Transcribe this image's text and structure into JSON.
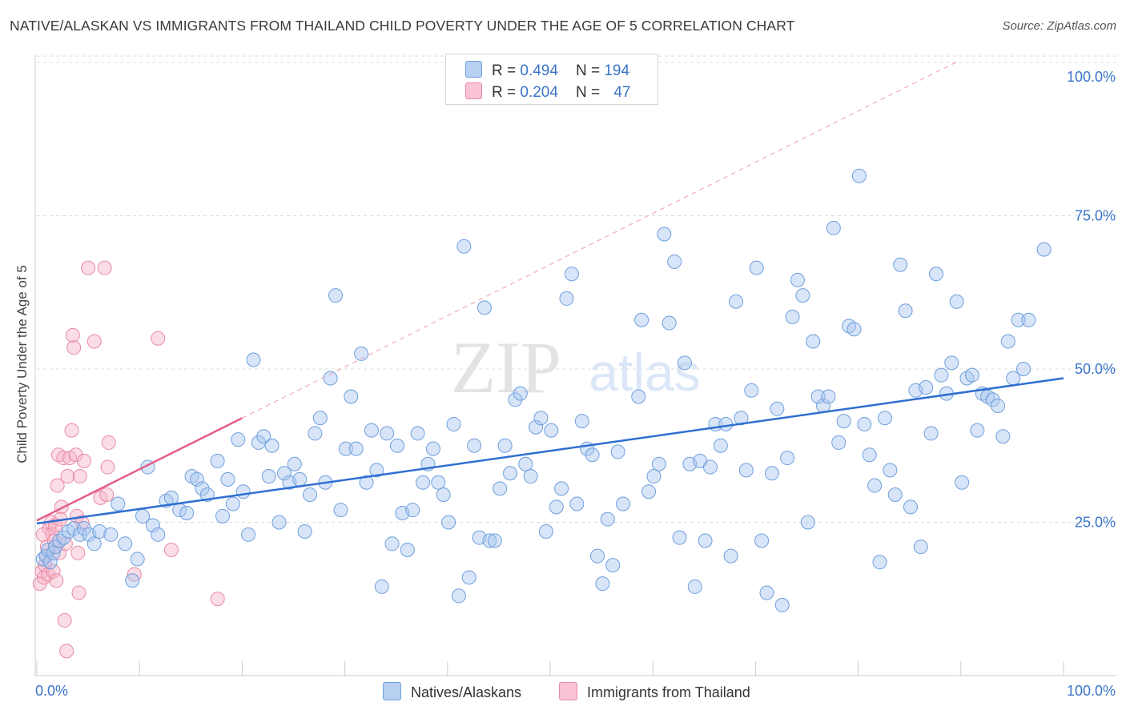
{
  "title": "NATIVE/ALASKAN VS IMMIGRANTS FROM THAILAND CHILD POVERTY UNDER THE AGE OF 5 CORRELATION CHART",
  "source": "Source: ZipAtlas.com",
  "watermark": {
    "zip": "ZIP",
    "atlas": "atlas"
  },
  "legend": {
    "r_label": "R =",
    "n_label": "N =",
    "series": [
      {
        "name": "Natives/Alaskans",
        "r": "0.494",
        "n": "194",
        "fill": "#b7d0f2",
        "stroke": "#6f9fdc"
      },
      {
        "name": "Immigrants from Thailand",
        "r": "0.204",
        "n": "47",
        "fill": "#f9c3d3",
        "stroke": "#e88aa6"
      }
    ]
  },
  "colors": {
    "blue_line": "#2f6fd0",
    "pink_line": "#e0608a",
    "blue_point": "#a9c6ef",
    "pink_point": "#f6b3c8",
    "tick_label": "#3a74c9",
    "grid": "#dcdcdc"
  },
  "chart_data": {
    "type": "scatter",
    "title": "NATIVE/ALASKAN VS IMMIGRANTS FROM THAILAND CHILD POVERTY UNDER THE AGE OF 5 CORRELATION CHART",
    "xlabel": "",
    "ylabel": "Child Poverty Under the Age of 5",
    "xlim": [
      0,
      100
    ],
    "ylim": [
      0,
      100
    ],
    "x_tick_labels": [
      "0.0%",
      "100.0%"
    ],
    "y_ticks": [
      25,
      50,
      75,
      100
    ],
    "y_tick_labels": [
      "25.0%",
      "50.0%",
      "75.0%",
      "100.0%"
    ],
    "grid": true,
    "series": [
      {
        "name": "Natives/Alaskans",
        "r": 0.494,
        "n": 194,
        "trend": {
          "x": [
            0,
            100
          ],
          "y": [
            24.8,
            48.5
          ]
        },
        "points": [
          [
            0.6,
            19
          ],
          [
            0.9,
            19.5
          ],
          [
            1.1,
            20.5
          ],
          [
            1.3,
            18.5
          ],
          [
            1.6,
            20
          ],
          [
            1.8,
            21
          ],
          [
            2.2,
            22
          ],
          [
            2.6,
            22.5
          ],
          [
            3.1,
            23.5
          ],
          [
            3.6,
            24
          ],
          [
            4.2,
            23
          ],
          [
            4.6,
            24
          ],
          [
            5.1,
            23
          ],
          [
            5.6,
            21.5
          ],
          [
            6.1,
            23.5
          ],
          [
            7.2,
            23
          ],
          [
            7.9,
            28
          ],
          [
            8.6,
            21.5
          ],
          [
            9.3,
            15.5
          ],
          [
            9.8,
            19
          ],
          [
            10.3,
            26
          ],
          [
            10.8,
            34
          ],
          [
            11.3,
            24.5
          ],
          [
            11.8,
            23
          ],
          [
            12.6,
            28.5
          ],
          [
            13.1,
            29
          ],
          [
            13.9,
            27
          ],
          [
            14.6,
            26.5
          ],
          [
            15.1,
            32.5
          ],
          [
            15.6,
            32
          ],
          [
            16.1,
            30.5
          ],
          [
            16.6,
            29.5
          ],
          [
            17.6,
            35
          ],
          [
            18.1,
            26
          ],
          [
            18.6,
            32
          ],
          [
            19.1,
            28
          ],
          [
            19.6,
            38.5
          ],
          [
            20.1,
            30
          ],
          [
            20.6,
            23
          ],
          [
            21.1,
            51.5
          ],
          [
            21.6,
            38
          ],
          [
            22.1,
            39
          ],
          [
            22.6,
            32.5
          ],
          [
            22.9,
            37.5
          ],
          [
            23.6,
            25
          ],
          [
            24.1,
            33
          ],
          [
            24.6,
            31.5
          ],
          [
            25.1,
            34.5
          ],
          [
            25.6,
            32
          ],
          [
            26.1,
            23.5
          ],
          [
            26.6,
            29.5
          ],
          [
            27.1,
            39.5
          ],
          [
            27.6,
            42
          ],
          [
            28.1,
            31.5
          ],
          [
            28.6,
            48.5
          ],
          [
            29.1,
            62
          ],
          [
            29.6,
            27
          ],
          [
            30.1,
            37
          ],
          [
            30.6,
            45.5
          ],
          [
            31.1,
            37
          ],
          [
            31.6,
            52.5
          ],
          [
            32.1,
            31.5
          ],
          [
            32.6,
            40
          ],
          [
            33.1,
            33.5
          ],
          [
            33.6,
            14.5
          ],
          [
            34.1,
            39.5
          ],
          [
            34.6,
            21.5
          ],
          [
            35.1,
            37.5
          ],
          [
            35.6,
            26.5
          ],
          [
            36.1,
            20.5
          ],
          [
            36.6,
            27
          ],
          [
            37.1,
            39.5
          ],
          [
            37.6,
            31.5
          ],
          [
            38.1,
            34.5
          ],
          [
            38.6,
            37
          ],
          [
            39.1,
            31.5
          ],
          [
            39.6,
            29.5
          ],
          [
            40.1,
            25
          ],
          [
            40.6,
            41
          ],
          [
            41.1,
            13
          ],
          [
            41.6,
            70
          ],
          [
            42.1,
            16
          ],
          [
            42.6,
            37.5
          ],
          [
            43.1,
            22.5
          ],
          [
            43.6,
            60
          ],
          [
            44.1,
            22
          ],
          [
            44.6,
            22
          ],
          [
            45.1,
            30.5
          ],
          [
            45.6,
            37.5
          ],
          [
            46.1,
            33
          ],
          [
            46.6,
            45
          ],
          [
            47.1,
            46
          ],
          [
            47.6,
            34.5
          ],
          [
            48.1,
            32.5
          ],
          [
            48.6,
            40.5
          ],
          [
            49.1,
            42
          ],
          [
            49.6,
            23.5
          ],
          [
            50.1,
            40
          ],
          [
            50.6,
            27.5
          ],
          [
            51.1,
            30.5
          ],
          [
            51.6,
            61.5
          ],
          [
            52.1,
            65.5
          ],
          [
            52.6,
            28
          ],
          [
            53.1,
            41.5
          ],
          [
            53.6,
            37
          ],
          [
            54.1,
            36
          ],
          [
            54.6,
            19.5
          ],
          [
            55.1,
            15
          ],
          [
            55.6,
            25.5
          ],
          [
            56.1,
            18
          ],
          [
            56.6,
            36.5
          ],
          [
            57.1,
            28
          ],
          [
            58.6,
            45.5
          ],
          [
            58.9,
            58
          ],
          [
            59.6,
            30
          ],
          [
            60.1,
            32.5
          ],
          [
            60.6,
            34.5
          ],
          [
            61.1,
            72
          ],
          [
            61.6,
            57.5
          ],
          [
            62.1,
            67.5
          ],
          [
            62.6,
            22.5
          ],
          [
            63.1,
            51
          ],
          [
            63.6,
            34.5
          ],
          [
            64.1,
            14.5
          ],
          [
            64.6,
            35
          ],
          [
            65.1,
            22
          ],
          [
            65.6,
            34
          ],
          [
            66.1,
            41
          ],
          [
            66.6,
            37.5
          ],
          [
            67.1,
            41
          ],
          [
            67.6,
            19.5
          ],
          [
            68.1,
            61
          ],
          [
            68.6,
            42
          ],
          [
            69.1,
            33.5
          ],
          [
            69.6,
            46.5
          ],
          [
            70.1,
            66.5
          ],
          [
            70.6,
            22
          ],
          [
            71.1,
            13.5
          ],
          [
            71.6,
            33
          ],
          [
            72.1,
            43.5
          ],
          [
            72.6,
            11.5
          ],
          [
            73.1,
            35.5
          ],
          [
            73.6,
            58.5
          ],
          [
            74.1,
            64.5
          ],
          [
            74.6,
            62
          ],
          [
            75.1,
            25
          ],
          [
            75.6,
            54.5
          ],
          [
            76.1,
            45.5
          ],
          [
            76.6,
            44
          ],
          [
            77.1,
            45.5
          ],
          [
            77.6,
            73
          ],
          [
            78.1,
            38
          ],
          [
            78.6,
            41.5
          ],
          [
            79.1,
            57
          ],
          [
            79.6,
            56.5
          ],
          [
            80.1,
            81.5
          ],
          [
            80.6,
            41
          ],
          [
            81.1,
            36
          ],
          [
            81.6,
            31
          ],
          [
            82.1,
            18.5
          ],
          [
            82.6,
            42
          ],
          [
            83.1,
            33.5
          ],
          [
            83.6,
            29.5
          ],
          [
            84.1,
            67
          ],
          [
            84.6,
            59.5
          ],
          [
            85.1,
            27.5
          ],
          [
            85.6,
            46.5
          ],
          [
            86.1,
            21
          ],
          [
            86.6,
            47
          ],
          [
            87.1,
            39.5
          ],
          [
            87.6,
            65.5
          ],
          [
            88.1,
            49
          ],
          [
            88.6,
            46
          ],
          [
            89.1,
            51
          ],
          [
            89.6,
            61
          ],
          [
            90.1,
            31.5
          ],
          [
            90.6,
            48.5
          ],
          [
            91.1,
            49
          ],
          [
            91.6,
            40
          ],
          [
            92.1,
            46
          ],
          [
            92.6,
            45.5
          ],
          [
            93.1,
            45
          ],
          [
            93.6,
            44
          ],
          [
            94.1,
            39
          ],
          [
            94.6,
            54.5
          ],
          [
            95.1,
            48.5
          ],
          [
            95.6,
            58
          ],
          [
            96.1,
            50
          ],
          [
            96.6,
            58
          ],
          [
            98.1,
            69.5
          ]
        ]
      },
      {
        "name": "Immigrants from Thailand",
        "r": 0.204,
        "n": 47,
        "trend": {
          "x": [
            0,
            20
          ],
          "y": [
            25.3,
            42
          ]
        },
        "extrapolation": {
          "x": [
            20,
            89.5
          ],
          "y": [
            42,
            100
          ]
        },
        "points": [
          [
            0.3,
            15
          ],
          [
            0.5,
            17
          ],
          [
            0.7,
            16
          ],
          [
            0.8,
            18
          ],
          [
            0.9,
            19.5
          ],
          [
            1.0,
            21
          ],
          [
            1.1,
            16.5
          ],
          [
            1.2,
            24
          ],
          [
            1.4,
            25
          ],
          [
            1.5,
            23
          ],
          [
            1.6,
            17
          ],
          [
            1.7,
            22
          ],
          [
            1.8,
            24.5
          ],
          [
            1.9,
            15.5
          ],
          [
            2.0,
            31
          ],
          [
            2.1,
            36
          ],
          [
            2.2,
            20
          ],
          [
            2.4,
            27.5
          ],
          [
            2.6,
            35.5
          ],
          [
            2.8,
            21.5
          ],
          [
            3.0,
            32.5
          ],
          [
            3.2,
            35.5
          ],
          [
            3.4,
            40
          ],
          [
            3.5,
            55.5
          ],
          [
            3.6,
            53.5
          ],
          [
            3.8,
            36
          ],
          [
            3.9,
            26
          ],
          [
            4.0,
            20
          ],
          [
            4.1,
            13.5
          ],
          [
            4.2,
            32.5
          ],
          [
            4.4,
            25
          ],
          [
            4.6,
            35
          ],
          [
            5.0,
            66.5
          ],
          [
            5.6,
            54.5
          ],
          [
            6.2,
            29
          ],
          [
            6.6,
            66.5
          ],
          [
            6.8,
            29.5
          ],
          [
            6.9,
            34
          ],
          [
            7.0,
            38
          ],
          [
            9.5,
            16.5
          ],
          [
            11.8,
            55
          ],
          [
            13.1,
            20.5
          ],
          [
            17.6,
            12.5
          ],
          [
            2.7,
            9
          ],
          [
            2.9,
            4
          ],
          [
            0.6,
            23
          ],
          [
            2.3,
            25.5
          ]
        ]
      }
    ]
  }
}
